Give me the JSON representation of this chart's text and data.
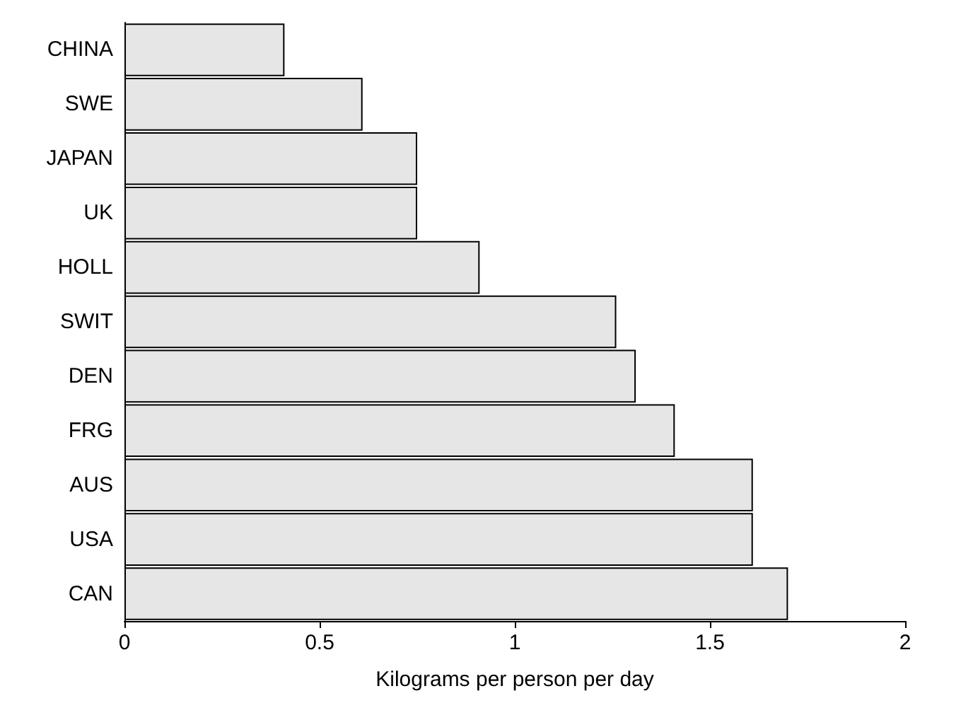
{
  "chart_data": {
    "type": "bar",
    "orientation": "horizontal",
    "xlabel": "Kilograms per person per day",
    "categories": [
      "CHINA",
      "SWE",
      "JAPAN",
      "UK",
      "HOLL",
      "SWIT",
      "DEN",
      "FRG",
      "AUS",
      "USA",
      "CAN"
    ],
    "values": [
      0.41,
      0.61,
      0.75,
      0.75,
      0.91,
      1.26,
      1.31,
      1.41,
      1.61,
      1.61,
      1.7
    ],
    "color": "#e6e6e6",
    "xlim": [
      0,
      2
    ],
    "xticks": [
      0,
      0.5,
      1,
      1.5,
      2
    ],
    "grid": false
  }
}
